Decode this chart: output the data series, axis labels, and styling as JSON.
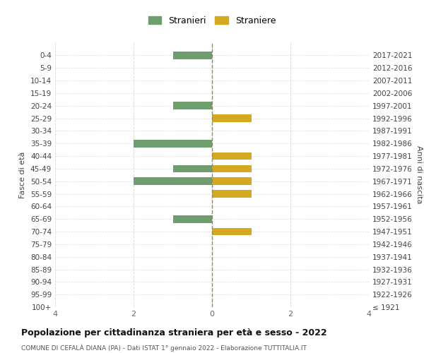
{
  "age_groups": [
    "100+",
    "95-99",
    "90-94",
    "85-89",
    "80-84",
    "75-79",
    "70-74",
    "65-69",
    "60-64",
    "55-59",
    "50-54",
    "45-49",
    "40-44",
    "35-39",
    "30-34",
    "25-29",
    "20-24",
    "15-19",
    "10-14",
    "5-9",
    "0-4"
  ],
  "birth_years": [
    "≤ 1921",
    "1922-1926",
    "1927-1931",
    "1932-1936",
    "1937-1941",
    "1942-1946",
    "1947-1951",
    "1952-1956",
    "1957-1961",
    "1962-1966",
    "1967-1971",
    "1972-1976",
    "1977-1981",
    "1982-1986",
    "1987-1991",
    "1992-1996",
    "1997-2001",
    "2002-2006",
    "2007-2011",
    "2012-2016",
    "2017-2021"
  ],
  "males": [
    0,
    0,
    0,
    0,
    0,
    0,
    0,
    1,
    0,
    0,
    2,
    1,
    0,
    2,
    0,
    0,
    1,
    0,
    0,
    0,
    1
  ],
  "females": [
    0,
    0,
    0,
    0,
    0,
    0,
    1,
    0,
    0,
    1,
    1,
    1,
    1,
    0,
    0,
    1,
    0,
    0,
    0,
    0,
    0
  ],
  "male_color": "#6e9e6e",
  "female_color": "#d4a820",
  "xlim": 4,
  "title_bold": "Popolazione per cittadinanza straniera per età e sesso - 2022",
  "subtitle": "COMUNE DI CEFALÀ DIANA (PA) - Dati ISTAT 1° gennaio 2022 - Elaborazione TUTTITALIA.IT",
  "ylabel_left": "Fasce di età",
  "ylabel_right": "Anni di nascita",
  "legend_stranieri": "Stranieri",
  "legend_straniere": "Straniere",
  "tick_color": "#aaaaaa",
  "grid_color": "#dddddd",
  "center_line_color": "#8a8a6a",
  "background_color": "#ffffff"
}
